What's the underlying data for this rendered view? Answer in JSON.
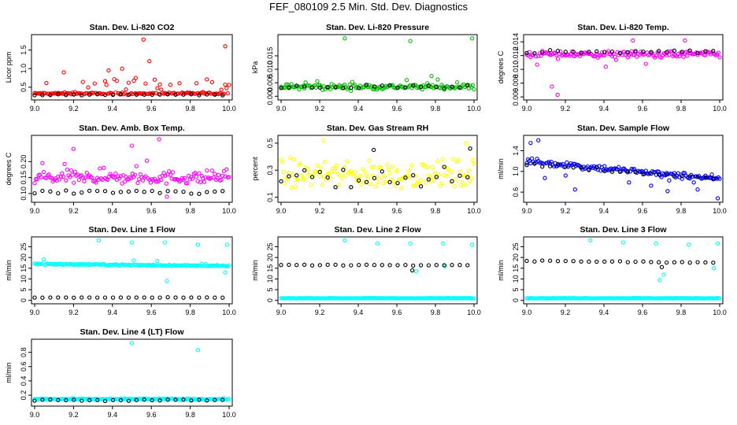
{
  "title": "FEF_080109  2.5 Min. Std. Dev. Diagnostics",
  "colors": {
    "red": "#ff0000",
    "green": "#00c000",
    "magenta": "#ff00ff",
    "yellow": "#ffff00",
    "blue": "#0000ff",
    "cyan": "#00ffff",
    "black": "#000000"
  },
  "chart_data": [
    {
      "id": "co2",
      "type": "scatter",
      "title": "Stan. Dev. Li-820 CO2",
      "ylabel": "Licor ppm",
      "xlim": [
        9.0,
        10.0
      ],
      "xticks": [
        "9.0",
        "9.2",
        "9.4",
        "9.6",
        "9.8",
        "10.0"
      ],
      "ylim": [
        0.22,
        1.85
      ],
      "yticks": [
        "0.5",
        "1.0",
        "1.5"
      ],
      "ytick_values": [
        0.5,
        1.0,
        1.5
      ],
      "series": [
        {
          "name": "primary",
          "color": "#ff0000",
          "base": 0.33,
          "spread": 0.05,
          "outlier_rate": 0.14,
          "outlier_max": 0.4,
          "outliers": [
            [
              9.38,
              0.95
            ],
            [
              9.45,
              1.0
            ],
            [
              9.56,
              1.78
            ],
            [
              9.59,
              1.2
            ],
            [
              9.98,
              1.6
            ],
            [
              9.15,
              0.9
            ],
            [
              9.52,
              0.75
            ]
          ]
        },
        {
          "name": "reference",
          "color": "#000000",
          "base": 0.3,
          "spread": 0.03,
          "outlier_rate": 0,
          "outlier_max": 0,
          "outliers": []
        }
      ]
    },
    {
      "id": "pressure",
      "type": "scatter",
      "title": "Stan. Dev. Li-820 Pressure",
      "ylabel": "kPa",
      "xlim": [
        9.0,
        10.0
      ],
      "xticks": [
        "9.0",
        "9.2",
        "9.4",
        "9.6",
        "9.8",
        "10.0"
      ],
      "ylim": [
        -0.0005,
        0.022
      ],
      "yticks": [
        "0.000",
        "0.005",
        "0.010",
        "0.015"
      ],
      "ytick_values": [
        0.0,
        0.005,
        0.01,
        0.015
      ],
      "series": [
        {
          "name": "primary",
          "color": "#00c000",
          "base": 0.0035,
          "spread": 0.002,
          "outlier_rate": 0.03,
          "outlier_max": 0.003,
          "outliers": [
            [
              9.33,
              0.0215
            ],
            [
              9.67,
              0.0205
            ],
            [
              9.99,
              0.0215
            ],
            [
              9.78,
              0.0075
            ]
          ]
        },
        {
          "name": "reference",
          "color": "#000000",
          "base": 0.0035,
          "spread": 0.0015,
          "outlier_rate": 0,
          "outlier_max": 0,
          "outliers": []
        }
      ]
    },
    {
      "id": "temp",
      "type": "scatter",
      "title": "Stan. Dev. Li-820 Temp.",
      "ylabel": "degrees C",
      "xlim": [
        9.0,
        10.0
      ],
      "xticks": [
        "9.0",
        "9.2",
        "9.4",
        "9.6",
        "9.8",
        "10.0"
      ],
      "ylim": [
        0.0059,
        0.0147
      ],
      "yticks": [
        "0.006",
        "0.008",
        "0.010",
        "0.012",
        "0.014"
      ],
      "ytick_values": [
        0.006,
        0.008,
        0.01,
        0.012,
        0.014
      ],
      "series": [
        {
          "name": "primary",
          "color": "#ff00ff",
          "base": 0.0122,
          "spread": 0.0009,
          "outlier_rate": 0.06,
          "outlier_max": -0.002,
          "outliers": [
            [
              9.16,
              0.0063
            ],
            [
              9.13,
              0.0075
            ],
            [
              9.82,
              0.0142
            ],
            [
              9.55,
              0.0142
            ]
          ]
        },
        {
          "name": "reference",
          "color": "#000000",
          "base": 0.0125,
          "spread": 0.0006,
          "outlier_rate": 0,
          "outlier_max": 0,
          "outliers": []
        }
      ]
    },
    {
      "id": "boxtemp",
      "type": "scatter",
      "title": "Stan. Dev. Amb. Box Temp.",
      "ylabel": "degrees C",
      "xlim": [
        9.0,
        10.0
      ],
      "xticks": [
        "9.0",
        "9.2",
        "9.4",
        "9.6",
        "9.8",
        "10.0"
      ],
      "ylim": [
        0.08,
        0.275
      ],
      "yticks": [
        "0.10",
        "0.15",
        "0.20"
      ],
      "ytick_values": [
        0.1,
        0.15,
        0.2
      ],
      "series": [
        {
          "name": "primary",
          "color": "#ff00ff",
          "base": 0.15,
          "spread": 0.04,
          "outlier_rate": 0.05,
          "outlier_max": 0.06,
          "outliers": [
            [
              9.64,
              0.27
            ],
            [
              9.2,
              0.24
            ],
            [
              9.5,
              0.25
            ],
            [
              9.68,
              0.09
            ]
          ]
        },
        {
          "name": "reference",
          "color": "#000000",
          "base": 0.105,
          "spread": 0.012,
          "outlier_rate": 0,
          "outlier_max": 0,
          "outliers": []
        }
      ]
    },
    {
      "id": "rh",
      "type": "scatter",
      "title": "Stan. Dev. Gas Stream RH",
      "ylabel": "percent",
      "xlim": [
        9.0,
        10.0
      ],
      "xticks": [
        "9.0",
        "9.2",
        "9.4",
        "9.6",
        "9.8",
        "10.0"
      ],
      "ylim": [
        0.08,
        0.54
      ],
      "yticks": [
        "0.1",
        "0.3",
        "0.5"
      ],
      "ytick_values": [
        0.1,
        0.3,
        0.5
      ],
      "series": [
        {
          "name": "primary",
          "color": "#ffff00",
          "base": 0.27,
          "spread": 0.2,
          "outlier_rate": 0,
          "outlier_max": 0,
          "outliers": [
            [
              9.22,
              0.52
            ],
            [
              9.96,
              0.5
            ]
          ]
        },
        {
          "name": "reference",
          "color": "#000000",
          "base": 0.25,
          "spread": 0.15,
          "outlier_rate": 0,
          "outlier_max": 0,
          "outliers": [
            [
              9.98,
              0.46
            ],
            [
              9.48,
              0.45
            ]
          ]
        }
      ]
    },
    {
      "id": "sampleflow",
      "type": "scatter",
      "title": "Stan. Dev. Sample Flow",
      "ylabel": "ml/min",
      "xlim": [
        9.0,
        10.0
      ],
      "xticks": [
        "9.0",
        "9.2",
        "9.4",
        "9.6",
        "9.8",
        "10.0"
      ],
      "ylim": [
        0.45,
        1.65
      ],
      "yticks": [
        "0.6",
        "1.0",
        "1.4"
      ],
      "ytick_values": [
        0.6,
        1.0,
        1.4
      ],
      "series": [
        {
          "name": "primary",
          "color": "#0000ff",
          "base": 1.2,
          "trend": -0.35,
          "spread": 0.12,
          "outlier_rate": 0.05,
          "outlier_max": -0.3,
          "outliers": [
            [
              9.02,
              1.55
            ],
            [
              9.06,
              1.6
            ],
            [
              9.99,
              0.48
            ],
            [
              9.25,
              0.65
            ],
            [
              9.73,
              0.62
            ]
          ]
        },
        {
          "name": "reference",
          "color": "#000000",
          "base": 1.15,
          "trend": -0.3,
          "spread": 0.08,
          "outlier_rate": 0,
          "outlier_max": 0,
          "outliers": []
        }
      ]
    },
    {
      "id": "line1",
      "type": "scatter",
      "title": "Stan. Dev. Line 1 Flow",
      "ylabel": "ml/min",
      "xlim": [
        9.0,
        10.0
      ],
      "xticks": [
        "9.0",
        "9.2",
        "9.4",
        "9.6",
        "9.8",
        "10.0"
      ],
      "ylim": [
        -0.5,
        28.5
      ],
      "yticks": [
        "0",
        "5",
        "10",
        "15",
        "20",
        "25"
      ],
      "ytick_values": [
        0,
        5,
        10,
        15,
        20,
        25
      ],
      "series": [
        {
          "name": "primary",
          "color": "#00ffff",
          "base": 17.0,
          "trend": -1.0,
          "spread": 0.6,
          "outlier_rate": 0.02,
          "outlier_max": 2.5,
          "outliers": [
            [
              9.33,
              28.0
            ],
            [
              9.5,
              27.0
            ],
            [
              9.67,
              27.0
            ],
            [
              9.84,
              26.0
            ],
            [
              9.99,
              26.0
            ],
            [
              9.68,
              9.0
            ],
            [
              9.98,
              13.0
            ]
          ]
        },
        {
          "name": "reference",
          "color": "#000000",
          "base": 1.3,
          "spread": 0.2,
          "outlier_rate": 0,
          "outlier_max": 0,
          "outliers": []
        }
      ]
    },
    {
      "id": "line2",
      "type": "scatter",
      "title": "Stan. Dev. Line 2 Flow",
      "ylabel": "ml/min",
      "xlim": [
        9.0,
        10.0
      ],
      "xticks": [
        "9.0",
        "9.2",
        "9.4",
        "9.6",
        "9.8",
        "10.0"
      ],
      "ylim": [
        -0.5,
        28.5
      ],
      "yticks": [
        "0",
        "5",
        "10",
        "15",
        "20",
        "25"
      ],
      "ytick_values": [
        0,
        5,
        10,
        15,
        20,
        25
      ],
      "series": [
        {
          "name": "primary",
          "color": "#00ffff",
          "base": 1.0,
          "spread": 0.2,
          "outlier_rate": 0,
          "outlier_max": 0,
          "outliers": [
            [
              9.33,
              28.0
            ],
            [
              9.5,
              26.5
            ],
            [
              9.67,
              26.5
            ],
            [
              9.84,
              26.5
            ],
            [
              9.99,
              26.0
            ],
            [
              9.7,
              13.5
            ],
            [
              9.85,
              16.0
            ]
          ]
        },
        {
          "name": "reference",
          "color": "#000000",
          "base": 16.5,
          "spread": 0.4,
          "outlier_rate": 0.01,
          "outlier_max": -2,
          "outliers": [
            [
              9.68,
              14.0
            ]
          ]
        }
      ]
    },
    {
      "id": "line3",
      "type": "scatter",
      "title": "Stan. Dev. Line 3 Flow",
      "ylabel": "ml/min",
      "xlim": [
        9.0,
        10.0
      ],
      "xticks": [
        "9.0",
        "9.2",
        "9.4",
        "9.6",
        "9.8",
        "10.0"
      ],
      "ylim": [
        -0.5,
        28.5
      ],
      "yticks": [
        "0",
        "5",
        "10",
        "15",
        "20",
        "25"
      ],
      "ytick_values": [
        0,
        5,
        10,
        15,
        20,
        25
      ],
      "series": [
        {
          "name": "primary",
          "color": "#00ffff",
          "base": 1.0,
          "spread": 0.2,
          "outlier_rate": 0,
          "outlier_max": 0,
          "outliers": [
            [
              9.33,
              28.0
            ],
            [
              9.5,
              27.0
            ],
            [
              9.67,
              26.5
            ],
            [
              9.84,
              26.0
            ],
            [
              9.99,
              26.5
            ],
            [
              9.69,
              9.5
            ],
            [
              9.71,
              12.0
            ],
            [
              9.97,
              15.0
            ]
          ]
        },
        {
          "name": "reference",
          "color": "#000000",
          "base": 18.5,
          "trend": -1.0,
          "spread": 0.5,
          "outlier_rate": 0.01,
          "outlier_max": -2,
          "outliers": [
            [
              9.7,
              15.5
            ]
          ]
        }
      ]
    },
    {
      "id": "line4",
      "type": "scatter",
      "title": "Stan. Dev. Line 4 (LT) Flow",
      "ylabel": "ml/min",
      "xlim": [
        9.0,
        10.0
      ],
      "xticks": [
        "9.0",
        "9.2",
        "9.4",
        "9.6",
        "9.8",
        "10.0"
      ],
      "ylim": [
        0.08,
        0.95
      ],
      "yticks": [
        "0.2",
        "0.4",
        "0.6",
        "0.8"
      ],
      "ytick_values": [
        0.2,
        0.4,
        0.6,
        0.8
      ],
      "series": [
        {
          "name": "primary",
          "color": "#00ffff",
          "base": 0.145,
          "spread": 0.02,
          "outlier_rate": 0,
          "outlier_max": 0,
          "outliers": [
            [
              9.5,
              0.93
            ],
            [
              9.84,
              0.83
            ]
          ]
        },
        {
          "name": "reference",
          "color": "#000000",
          "base": 0.13,
          "spread": 0.02,
          "outlier_rate": 0,
          "outlier_max": 0,
          "outliers": []
        }
      ]
    }
  ]
}
